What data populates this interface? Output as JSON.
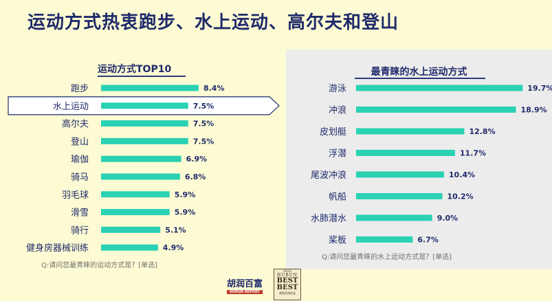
{
  "title": "运动方式热衷跑步、水上运动、高尔夫和登山",
  "logos": {
    "hurun_text": "胡润百富",
    "hurun_sub": "HURUN REPORT",
    "best_year": "2022",
    "best_hurun": "HURUN",
    "best_line1": "BEST",
    "best_line2": "BEST",
    "best_cap": "胡润至尚优品"
  },
  "colors": {
    "bar": "#2ad1b3",
    "title": "#1f2a6b",
    "background": "#fdfbd3",
    "panel": "#ececec"
  },
  "chart_data": [
    {
      "type": "bar",
      "orientation": "horizontal",
      "title": "运动方式TOP10",
      "categories": [
        "跑步",
        "水上运动",
        "高尔夫",
        "登山",
        "瑜伽",
        "骑马",
        "羽毛球",
        "滑雪",
        "骑行",
        "健身房器械训练"
      ],
      "values": [
        8.4,
        7.5,
        7.5,
        7.5,
        6.9,
        6.8,
        5.9,
        5.9,
        5.1,
        4.9
      ],
      "labels": [
        "8.4%",
        "7.5%",
        "7.5%",
        "7.5%",
        "6.9%",
        "6.8%",
        "5.9%",
        "5.9%",
        "5.1%",
        "4.9%"
      ],
      "highlight": "水上运动",
      "footnote": "Q:请问您最青睐的运动方式是？[单选]"
    },
    {
      "type": "bar",
      "orientation": "horizontal",
      "title": "最青睐的水上运动方式",
      "categories": [
        "游泳",
        "冲浪",
        "皮划艇",
        "浮潜",
        "尾波冲浪",
        "帆船",
        "水肺潜水",
        "桨板"
      ],
      "values": [
        19.7,
        18.9,
        12.8,
        11.7,
        10.4,
        10.2,
        9.0,
        6.7
      ],
      "labels": [
        "19.7%",
        "18.9%",
        "12.8%",
        "11.7%",
        "10.4%",
        "10.2%",
        "9.0%",
        "6.7%"
      ],
      "footnote": "Q:请问您最青睐的水上运动方式是？[单选]"
    }
  ]
}
